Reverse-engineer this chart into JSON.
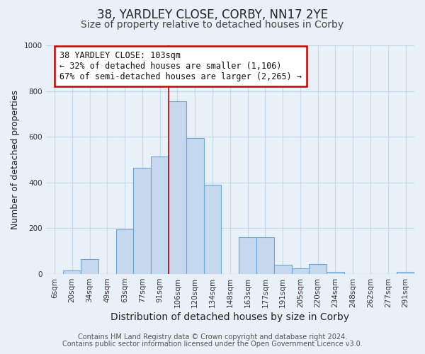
{
  "title": "38, YARDLEY CLOSE, CORBY, NN17 2YE",
  "subtitle": "Size of property relative to detached houses in Corby",
  "xlabel": "Distribution of detached houses by size in Corby",
  "ylabel": "Number of detached properties",
  "bar_labels": [
    "6sqm",
    "20sqm",
    "34sqm",
    "49sqm",
    "63sqm",
    "77sqm",
    "91sqm",
    "106sqm",
    "120sqm",
    "134sqm",
    "148sqm",
    "163sqm",
    "177sqm",
    "191sqm",
    "205sqm",
    "220sqm",
    "234sqm",
    "248sqm",
    "262sqm",
    "277sqm",
    "291sqm"
  ],
  "bar_values": [
    0,
    15,
    65,
    0,
    195,
    465,
    515,
    755,
    595,
    390,
    0,
    160,
    160,
    40,
    25,
    45,
    10,
    0,
    0,
    0,
    10
  ],
  "bar_color": "#c5d8ee",
  "bar_edge_color": "#6ea8d8",
  "grid_color": "#c8d8e8",
  "vline_color": "#cc0000",
  "annotation_text": "38 YARDLEY CLOSE: 103sqm\n← 32% of detached houses are smaller (1,106)\n67% of semi-detached houses are larger (2,265) →",
  "annotation_box_color": "#ffffff",
  "annotation_box_edge": "#cc0000",
  "footnote1": "Contains HM Land Registry data © Crown copyright and database right 2024.",
  "footnote2": "Contains public sector information licensed under the Open Government Licence v3.0.",
  "ylim": [
    0,
    1000
  ],
  "title_fontsize": 12,
  "subtitle_fontsize": 10,
  "xlabel_fontsize": 10,
  "ylabel_fontsize": 9,
  "tick_fontsize": 7.5,
  "footnote_fontsize": 7,
  "background_color": "#e8f0f8"
}
